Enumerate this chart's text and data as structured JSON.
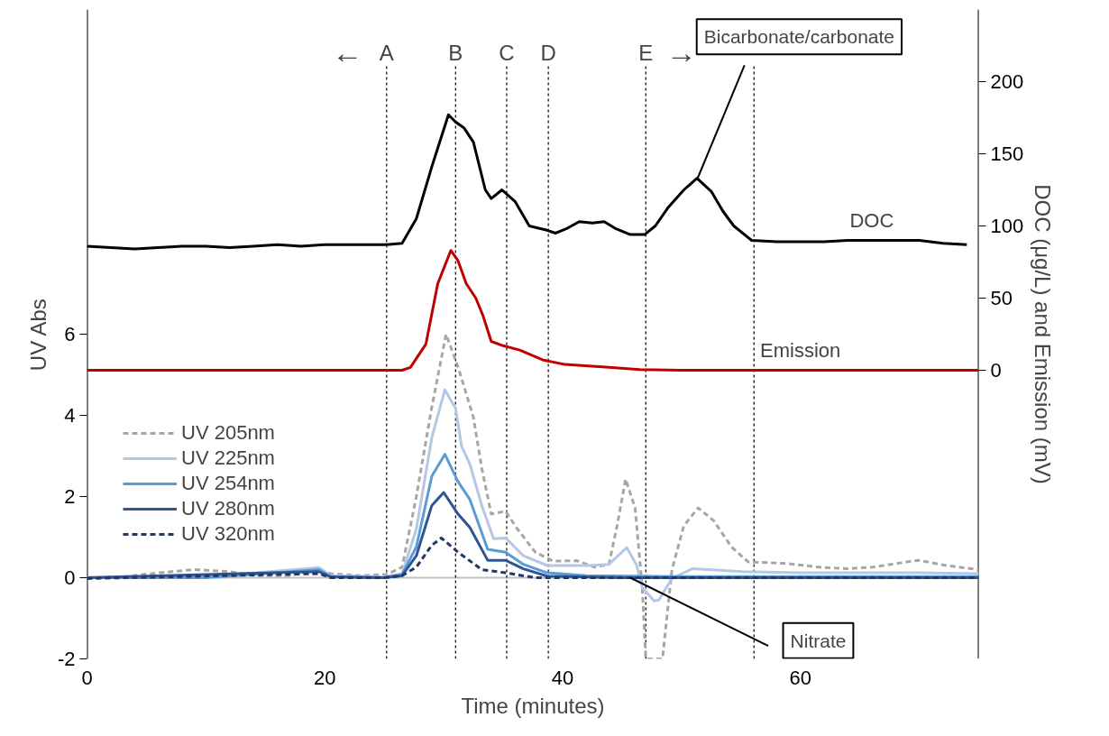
{
  "chart_data": {
    "type": "line",
    "xlabel": "Time (minutes)",
    "ylabel": "UV Abs",
    "y2label": "DOC (μg/L) and Emission (mV)",
    "xlim": [
      0,
      75
    ],
    "xticks": [
      0,
      20,
      40,
      60
    ],
    "ylim": [
      -2,
      14
    ],
    "yticks": [
      -2,
      0,
      2,
      4,
      6
    ],
    "y2lim": [
      -200,
      250
    ],
    "y2ticks": [
      0,
      50,
      100,
      150,
      200
    ],
    "legend": "left",
    "grid": false,
    "line_style": "solid",
    "series": [
      {
        "name": "DOC",
        "color": "#000000",
        "axis": "y2",
        "x": [
          0,
          2,
          4,
          6,
          8,
          10,
          12,
          14,
          16,
          18,
          20,
          22,
          24,
          25.2,
          26.5,
          27.7,
          29.0,
          30.4,
          31.0,
          31.7,
          32.5,
          33.5,
          34.0,
          34.9,
          36.0,
          37.2,
          38.7,
          39.4,
          40.3,
          41.4,
          42.5,
          43.5,
          44.5,
          45.7,
          46.9,
          47.8,
          48.9,
          50.2,
          51.3,
          52.5,
          53.5,
          54.4,
          55.9,
          58,
          60,
          62,
          64,
          66,
          68,
          70,
          72,
          74
        ],
        "values": [
          86,
          85,
          84,
          85,
          86,
          86,
          85,
          86,
          87,
          86,
          87,
          87,
          87,
          87,
          88,
          105,
          141,
          177,
          172,
          168,
          158,
          125,
          119,
          125,
          117,
          100,
          97,
          95,
          98,
          103,
          102,
          103,
          98,
          94,
          94,
          100,
          113,
          125,
          133,
          124,
          110,
          100,
          90,
          89,
          89,
          89,
          90,
          90,
          90,
          90,
          88,
          87
        ]
      },
      {
        "name": "Emission",
        "color": "#c00000",
        "axis": "y2",
        "x": [
          0,
          10,
          20,
          26.5,
          27.2,
          28.5,
          29.5,
          30.6,
          31.2,
          31.9,
          32.7,
          33.3,
          34.0,
          35.0,
          36.4,
          38.4,
          40.2,
          43.9,
          46.5,
          50,
          60,
          75
        ],
        "values": [
          0,
          0,
          0,
          0,
          2,
          18,
          60,
          83,
          76,
          60,
          50,
          38,
          20,
          17,
          14,
          7,
          4,
          2,
          0.5,
          0,
          0,
          0
        ]
      },
      {
        "name": "UV 205nm",
        "color": "#a6a6a6",
        "axis": "y",
        "line_style": "dashed",
        "x": [
          0,
          3,
          6,
          9,
          12,
          14,
          17,
          19.5,
          20.5,
          23,
          25.2,
          26.5,
          27.7,
          29.0,
          30.2,
          31.2,
          32.5,
          33.2,
          34.0,
          35.2,
          36.2,
          37.7,
          39.2,
          41.2,
          42.7,
          43.9,
          44.6,
          45.3,
          46.1,
          46.7,
          47.0,
          48.4,
          49.2,
          50.2,
          51.4,
          52.7,
          54.2,
          55.6,
          58.8,
          61.6,
          63.9,
          66.1,
          69.9,
          72.3,
          75
        ],
        "values": [
          0,
          0.02,
          0.12,
          0.2,
          0.15,
          0.05,
          0.05,
          0.2,
          0.1,
          0.05,
          0.08,
          0.26,
          2.0,
          4.2,
          6.0,
          5.2,
          3.95,
          2.7,
          1.57,
          1.64,
          1.2,
          0.63,
          0.41,
          0.42,
          0.26,
          0.33,
          1.3,
          2.43,
          1.72,
          -0.24,
          -2.0,
          -2.0,
          0.2,
          1.28,
          1.72,
          1.41,
          0.76,
          0.39,
          0.35,
          0.26,
          0.22,
          0.26,
          0.43,
          0.3,
          0.2
        ]
      },
      {
        "name": "UV 225nm",
        "color": "#b4c7e7",
        "axis": "y",
        "x": [
          0,
          10,
          19.5,
          20.5,
          25,
          26.5,
          27.7,
          29.0,
          30.1,
          31.0,
          31.5,
          32.2,
          33.2,
          34.2,
          35.2,
          36.7,
          38.7,
          42.2,
          43.9,
          45.4,
          46.2,
          46.7,
          47.7,
          48.1,
          49.2,
          50.9,
          55.1,
          60,
          70,
          75
        ],
        "values": [
          0,
          0.02,
          0.25,
          0.05,
          0.02,
          0.1,
          1.2,
          3.45,
          4.63,
          4.17,
          3.24,
          2.8,
          1.78,
          0.96,
          0.98,
          0.54,
          0.3,
          0.3,
          0.33,
          0.74,
          0.33,
          -0.24,
          -0.57,
          -0.55,
          -0.02,
          0.22,
          0.15,
          0.12,
          0.12,
          0.1
        ]
      },
      {
        "name": "UV 254nm",
        "color": "#5b9bd5",
        "axis": "y",
        "x": [
          0,
          10,
          19.5,
          20.5,
          25,
          26.5,
          27.7,
          29.0,
          30.1,
          31.2,
          32.2,
          33.7,
          35.2,
          36.7,
          38.7,
          42,
          50,
          60,
          75
        ],
        "values": [
          0,
          0,
          0.2,
          0.03,
          0,
          0.08,
          0.76,
          2.5,
          3.04,
          2.37,
          1.93,
          0.7,
          0.63,
          0.33,
          0.12,
          0.05,
          0.03,
          0.03,
          0.03
        ]
      },
      {
        "name": "UV 280nm",
        "color": "#2f5597",
        "axis": "y",
        "x": [
          0,
          19.5,
          20.5,
          25,
          26.5,
          27.7,
          29.0,
          30.0,
          31.2,
          32.2,
          33.7,
          35.2,
          36.7,
          38.7,
          45,
          60,
          75
        ],
        "values": [
          0,
          0.15,
          0.02,
          0,
          0.05,
          0.54,
          1.78,
          2.1,
          1.57,
          1.24,
          0.43,
          0.43,
          0.22,
          0.04,
          0,
          0,
          0
        ]
      },
      {
        "name": "UV 320nm",
        "color": "#1f3864",
        "axis": "y",
        "line_style": "dashed",
        "x": [
          0,
          19.5,
          20.5,
          25,
          26.5,
          27.7,
          29.0,
          29.8,
          31.2,
          33.2,
          35.2,
          37.7,
          50,
          75
        ],
        "values": [
          -0.02,
          0.1,
          0,
          0,
          0.05,
          0.26,
          0.8,
          0.98,
          0.63,
          0.2,
          0.12,
          0,
          0,
          0
        ]
      }
    ],
    "ref_lines": [
      {
        "axis": "x",
        "value": 25.2,
        "label": "A",
        "color": "#000000",
        "line_style": "dashed"
      },
      {
        "axis": "x",
        "value": 31.0,
        "label": "B",
        "color": "#000000",
        "line_style": "dashed"
      },
      {
        "axis": "x",
        "value": 35.3,
        "label": "C",
        "color": "#000000",
        "line_style": "dashed"
      },
      {
        "axis": "x",
        "value": 38.8,
        "label": "D",
        "color": "#000000",
        "line_style": "dashed"
      },
      {
        "axis": "x",
        "value": 47.0,
        "label": "E",
        "color": "#000000",
        "line_style": "dashed"
      },
      {
        "axis": "x",
        "value": 56.1,
        "label": null,
        "color": "#000000",
        "line_style": "dashed"
      },
      {
        "axis": "y",
        "value": 0,
        "label": null,
        "color": "#bfbfbf",
        "line_style": "solid"
      }
    ],
    "annotations": [
      "←",
      "→",
      {
        "text": "Bicarbonate/carbonate",
        "x": 51.3,
        "y": 9.8
      },
      {
        "text": "Nitrate",
        "x": 45.7,
        "y": 0
      }
    ]
  }
}
